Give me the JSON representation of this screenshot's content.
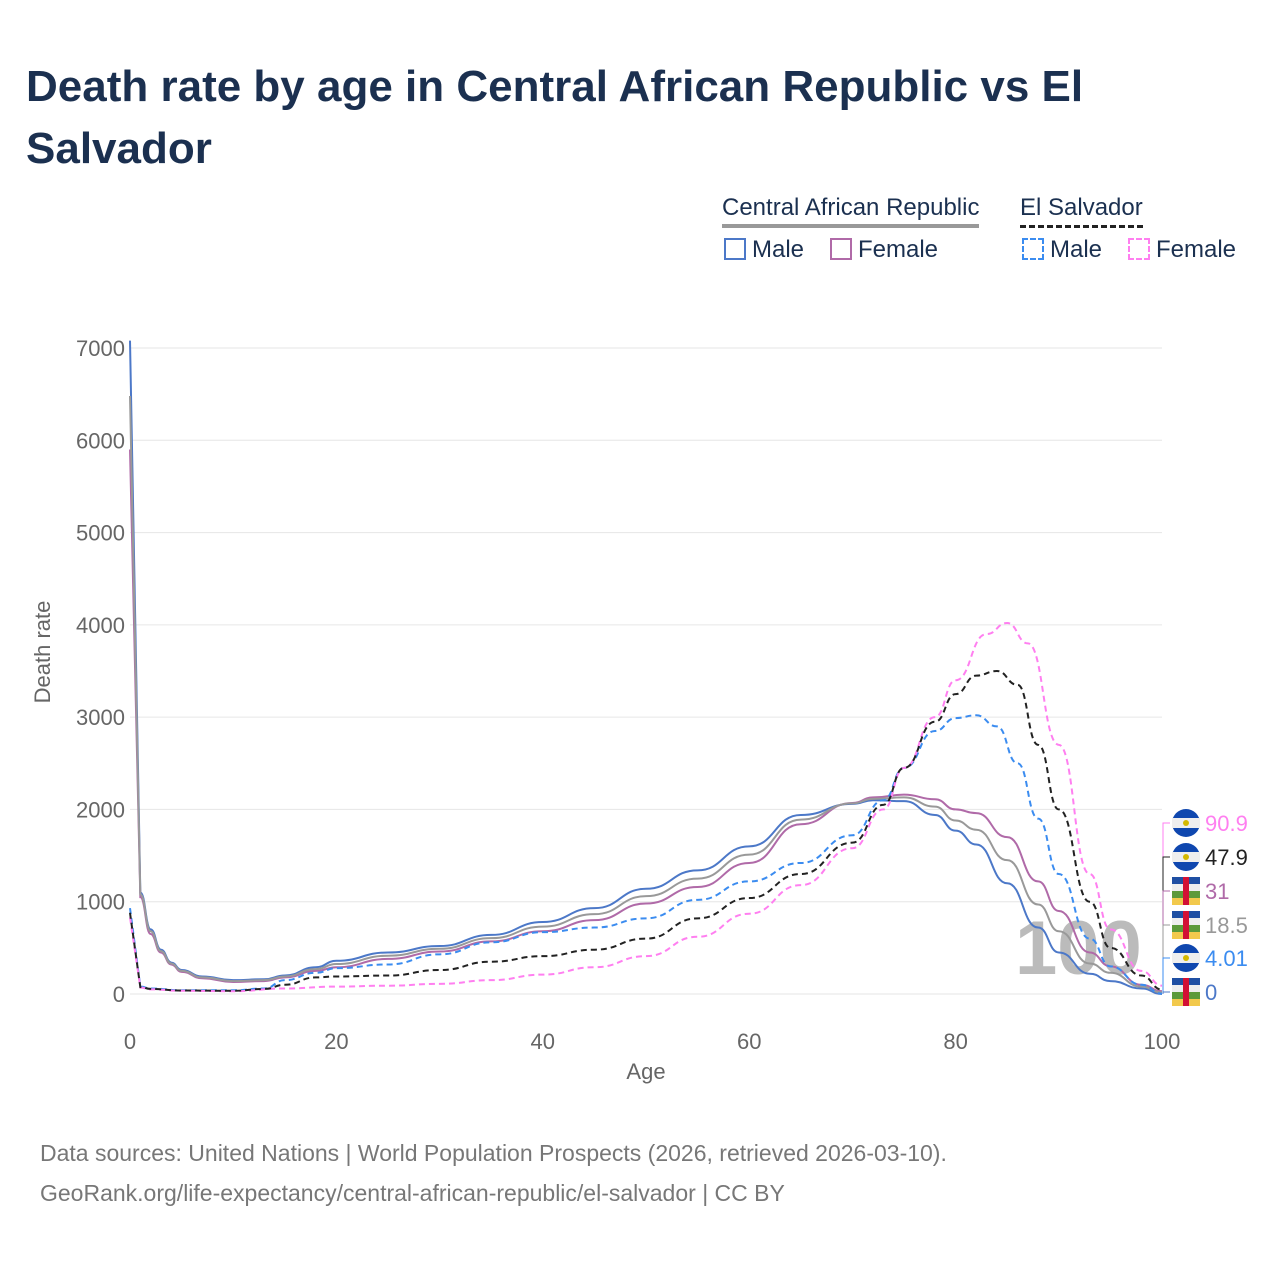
{
  "title": "Death rate by age in Central African Republic vs El Salvador",
  "legend": {
    "groups": [
      {
        "name": "Central African Republic",
        "line": "solid"
      },
      {
        "name": "El Salvador",
        "line": "dashed"
      }
    ],
    "male": "Male",
    "female": "Female"
  },
  "watermark": "100",
  "footer": {
    "sources": "Data sources: United Nations | World Population Prospects (2026, retrieved 2026-03-10).",
    "url": "GeoRank.org/life-expectancy/central-african-republic/el-salvador | CC BY"
  },
  "chart_data": {
    "type": "line",
    "xlabel": "Age",
    "ylabel": "Death rate",
    "xlim": [
      0,
      100
    ],
    "ylim": [
      0,
      7000
    ],
    "xticks": [
      "0",
      "20",
      "40",
      "60",
      "80",
      "100"
    ],
    "yticks": [
      "0",
      "1000",
      "2000",
      "3000",
      "4000",
      "5000",
      "6000",
      "7000"
    ],
    "series": [
      {
        "name": "Central African Republic Male",
        "color": "#4c78c8",
        "dash": false,
        "end_label": "0",
        "flag": "caf",
        "x": [
          0,
          1,
          2,
          3,
          4,
          5,
          7,
          10,
          13,
          15,
          18,
          20,
          25,
          30,
          35,
          40,
          45,
          50,
          55,
          60,
          65,
          70,
          72,
          75,
          78,
          80,
          82,
          85,
          88,
          90,
          93,
          95,
          98,
          100
        ],
        "y": [
          7080,
          1100,
          700,
          480,
          340,
          260,
          190,
          150,
          160,
          200,
          290,
          360,
          450,
          520,
          640,
          780,
          930,
          1140,
          1340,
          1600,
          1940,
          2060,
          2100,
          2090,
          1940,
          1770,
          1620,
          1200,
          720,
          450,
          220,
          140,
          60,
          0
        ]
      },
      {
        "name": "Central African Republic Female",
        "color": "#b06aa8",
        "dash": false,
        "end_label": "31",
        "flag": "caf",
        "x": [
          0,
          1,
          2,
          3,
          4,
          5,
          7,
          10,
          13,
          15,
          18,
          20,
          25,
          30,
          35,
          40,
          45,
          50,
          55,
          60,
          65,
          70,
          72,
          75,
          78,
          80,
          82,
          85,
          88,
          90,
          93,
          95,
          98,
          100
        ],
        "y": [
          5900,
          1050,
          650,
          450,
          320,
          240,
          170,
          130,
          140,
          180,
          250,
          290,
          380,
          460,
          570,
          680,
          800,
          980,
          1160,
          1420,
          1840,
          2070,
          2130,
          2160,
          2110,
          2000,
          1960,
          1700,
          1220,
          900,
          450,
          300,
          100,
          31
        ]
      },
      {
        "name": "Central African Republic Total",
        "color": "#999999",
        "dash": false,
        "end_label": "18.5",
        "flag": "caf",
        "x": [
          0,
          1,
          2,
          3,
          4,
          5,
          7,
          10,
          13,
          15,
          18,
          20,
          25,
          30,
          35,
          40,
          45,
          50,
          55,
          60,
          65,
          70,
          72,
          75,
          78,
          80,
          82,
          85,
          88,
          90,
          93,
          95,
          98,
          100
        ],
        "y": [
          6480,
          1080,
          680,
          465,
          330,
          250,
          180,
          140,
          150,
          190,
          270,
          325,
          415,
          490,
          605,
          730,
          865,
          1060,
          1250,
          1510,
          1890,
          2065,
          2115,
          2130,
          2030,
          1880,
          1780,
          1450,
          970,
          680,
          330,
          230,
          80,
          18.5
        ]
      },
      {
        "name": "El Salvador Male",
        "color": "#3b8cf0",
        "dash": true,
        "end_label": "4.01",
        "flag": "slv",
        "x": [
          0,
          1,
          2,
          5,
          10,
          13,
          15,
          18,
          20,
          25,
          30,
          35,
          40,
          45,
          50,
          55,
          60,
          65,
          70,
          73,
          75,
          78,
          80,
          82,
          84,
          86,
          88,
          90,
          93,
          95,
          98,
          100
        ],
        "y": [
          930,
          80,
          60,
          40,
          40,
          60,
          150,
          230,
          280,
          320,
          430,
          560,
          670,
          720,
          820,
          1020,
          1220,
          1420,
          1720,
          2100,
          2450,
          2850,
          2990,
          3020,
          2900,
          2500,
          1900,
          1300,
          600,
          300,
          100,
          4.01
        ]
      },
      {
        "name": "El Salvador Female",
        "color": "#ff7ff0",
        "dash": true,
        "end_label": "90.9",
        "flag": "slv",
        "x": [
          0,
          1,
          2,
          5,
          10,
          15,
          20,
          25,
          30,
          35,
          40,
          45,
          50,
          55,
          60,
          65,
          70,
          73,
          75,
          78,
          80,
          83,
          85,
          87,
          90,
          93,
          95,
          98,
          100
        ],
        "y": [
          830,
          70,
          50,
          35,
          30,
          60,
          80,
          90,
          110,
          150,
          210,
          290,
          410,
          620,
          870,
          1180,
          1580,
          2000,
          2450,
          3000,
          3400,
          3900,
          4020,
          3800,
          2700,
          1300,
          700,
          250,
          90.9
        ]
      },
      {
        "name": "El Salvador Total",
        "color": "#222222",
        "dash": true,
        "end_label": "47.9",
        "flag": "slv",
        "x": [
          0,
          1,
          2,
          5,
          10,
          13,
          15,
          18,
          20,
          25,
          30,
          35,
          40,
          45,
          50,
          55,
          60,
          65,
          70,
          73,
          75,
          78,
          80,
          82,
          84,
          86,
          88,
          90,
          93,
          95,
          98,
          100
        ],
        "y": [
          880,
          75,
          55,
          38,
          35,
          55,
          100,
          180,
          190,
          200,
          260,
          350,
          410,
          480,
          600,
          820,
          1040,
          1300,
          1640,
          2050,
          2450,
          2950,
          3250,
          3450,
          3500,
          3350,
          2700,
          2000,
          1000,
          500,
          200,
          47.9
        ]
      }
    ]
  }
}
